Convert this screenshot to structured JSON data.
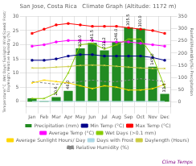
{
  "chart_data": {
    "type": "bar",
    "title": "San Jose, Costa Rica   Climate Graph (Altitude: 1172 m)",
    "categories": [
      "Jan",
      "Feb",
      "Mar",
      "Apr",
      "May",
      "Jun",
      "Jul",
      "Aug",
      "Sep",
      "Oct",
      "Nov",
      "Dec"
    ],
    "ylabel": "Temperature/°C  Wet Days/ Sunlight/ Wind Speed/ Frost/\nDaylength/ Relative Humidity (%)",
    "y2label": "Rainfall/Humidity(%) Precipitation",
    "annotations": [
      "Clima Temps"
    ],
    "series": [
      {
        "name": "Precipitation (mm)",
        "type": "bar",
        "axis": "y2",
        "color": "#228B22",
        "values": [
          15.5,
          5.0,
          20.6,
          46.0,
          220.0,
          241.5,
          211.2,
          246.0,
          305.5,
          300.0,
          145.0,
          33.5
        ],
        "data_labels": true,
        "value_labels": [
          null,
          null,
          "20.6",
          "46.0",
          "220.0",
          "241.5",
          "211.2",
          "246.0",
          "305.5",
          "300.0",
          "145.0",
          "33.5"
        ]
      },
      {
        "name": "Min Temp (°C)",
        "type": "line",
        "color": "#00008B",
        "marker": "square",
        "line_style": "solid",
        "values": [
          14.5,
          14.5,
          15.0,
          16.0,
          16.5,
          16.5,
          16.0,
          16.0,
          16.0,
          16.0,
          15.5,
          14.5
        ]
      },
      {
        "name": "Max Temp (°C)",
        "type": "line",
        "color": "#FF0000",
        "marker": "square",
        "line_style": "solid",
        "values": [
          24.0,
          25.5,
          27.0,
          27.5,
          27.0,
          26.5,
          26.5,
          26.5,
          26.0,
          25.5,
          25.0,
          24.0
        ]
      },
      {
        "name": "Average Temp (°C)",
        "type": "line",
        "color": "#FF00FF",
        "marker": "square",
        "line_style": "solid",
        "values": [
          19.5,
          20.0,
          21.0,
          21.5,
          21.5,
          21.5,
          21.0,
          21.0,
          21.0,
          20.5,
          20.0,
          19.5
        ]
      },
      {
        "name": "Wet Days (>0.1 mm)",
        "type": "line",
        "color": "#88CC00",
        "marker": "x",
        "line_style": "solid",
        "values": [
          1.0,
          1.0,
          3.0,
          10.0,
          20.0,
          20.5,
          18.5,
          20.0,
          22.0,
          22.0,
          16.0,
          5.0
        ]
      },
      {
        "name": "Average Sunlight Hours/ Day",
        "type": "line",
        "color": "#FFD700",
        "marker": "x",
        "line_style": "solid",
        "values": [
          6.5,
          7.5,
          7.0,
          6.5,
          5.5,
          4.5,
          5.5,
          5.0,
          4.0,
          4.0,
          4.5,
          6.0
        ]
      },
      {
        "name": "Days with Frost",
        "type": "line",
        "color": "#ADD8E6",
        "marker": "none",
        "line_style": "solid",
        "values": [
          0,
          0,
          0,
          0,
          0,
          0,
          0,
          0,
          0,
          0,
          0,
          0
        ]
      },
      {
        "name": "Daylength (Hours)",
        "type": "line",
        "color": "#CCCC44",
        "marker": "x",
        "line_style": "solid",
        "values": [
          11.8,
          11.8,
          12.1,
          12.3,
          12.7,
          12.8,
          12.7,
          12.4,
          12.1,
          11.8,
          11.6,
          11.6
        ]
      },
      {
        "name": "Relative Humidity (%)",
        "type": "line",
        "color": "#888888",
        "marker": "none",
        "line_style": "dashed",
        "values": [
          7.0,
          6.5,
          6.0,
          6.5,
          7.0,
          7.5,
          7.0,
          7.0,
          7.5,
          8.0,
          7.5,
          7.0
        ]
      }
    ],
    "ylim": [
      -2,
      30
    ],
    "yticks": [
      0,
      5,
      10,
      15,
      20,
      25,
      30
    ],
    "y2lim": [
      -20,
      350
    ],
    "y2ticks": [
      0,
      50,
      100,
      150,
      200,
      250,
      300,
      350
    ],
    "grid": true,
    "legend": "bottom"
  }
}
